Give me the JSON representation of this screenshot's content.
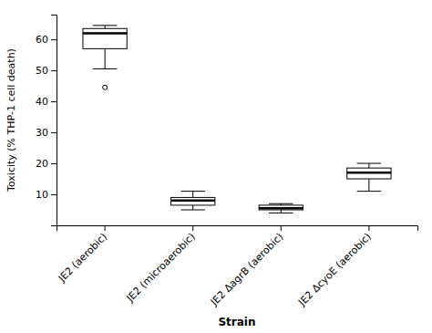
{
  "chart_data": {
    "type": "box",
    "categories": [
      "JE2 (aerobic)",
      "JE2 (microaerobic)",
      "JE2 ΔagrB (aerobic)",
      "JE2 ΔcyoE (aerobic)"
    ],
    "boxes": [
      {
        "whisker_low": 50.5,
        "q1": 57.0,
        "median": 62.0,
        "q3": 63.5,
        "whisker_high": 64.5,
        "fliers": [
          44.5
        ]
      },
      {
        "whisker_low": 5.0,
        "q1": 6.5,
        "median": 8.0,
        "q3": 9.0,
        "whisker_high": 11.0,
        "fliers": []
      },
      {
        "whisker_low": 4.0,
        "q1": 5.0,
        "median": 5.5,
        "q3": 6.5,
        "whisker_high": 7.0,
        "fliers": []
      },
      {
        "whisker_low": 11.0,
        "q1": 15.0,
        "median": 17.0,
        "q3": 18.5,
        "whisker_high": 20.0,
        "fliers": []
      }
    ],
    "ylabel": "Toxicity (% THP-1 cell death)",
    "xlabel": "Strain",
    "ylim": [
      0,
      68
    ],
    "yticks": [
      10,
      20,
      30,
      40,
      50,
      60
    ],
    "color": "black",
    "grid": false
  }
}
